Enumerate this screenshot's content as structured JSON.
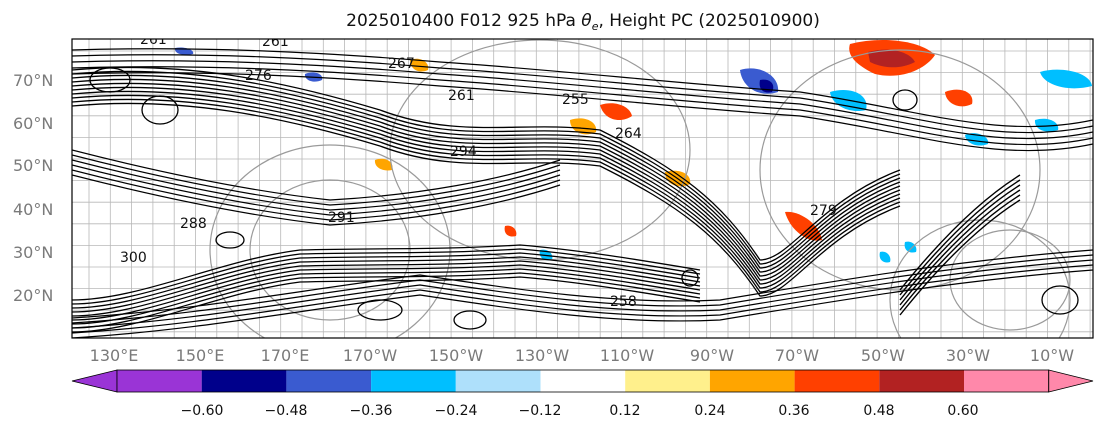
{
  "title_main": "2025010400 F012 925 hPa ",
  "title_theta": "θ",
  "title_sub": "e",
  "title_rest": ", Height PC (2025010900)",
  "lat_labels": [
    "70°N",
    "60°N",
    "50°N",
    "40°N",
    "30°N",
    "20°N"
  ],
  "lon_labels": [
    "130°E",
    "150°E",
    "170°E",
    "170°W",
    "150°W",
    "130°W",
    "110°W",
    "90°W",
    "70°W",
    "50°W",
    "30°W",
    "10°W"
  ],
  "colorbar": {
    "colors": [
      "#9a34d6",
      "#00008b",
      "#3a5bd0",
      "#00bfff",
      "#aee0fb",
      "#ffffff",
      "#fff08c",
      "#ffa500",
      "#ff4000",
      "#b22222",
      "#ff88aa"
    ],
    "ticks": [
      "−0.60",
      "−0.48",
      "−0.36",
      "−0.24",
      "−0.12",
      "0.12",
      "0.24",
      "0.36",
      "0.48",
      "0.60"
    ]
  },
  "contour_labels": [
    "261",
    "261",
    "267",
    "261",
    "255",
    "264",
    "294",
    "291",
    "288",
    "300",
    "276",
    "279",
    "258"
  ]
}
